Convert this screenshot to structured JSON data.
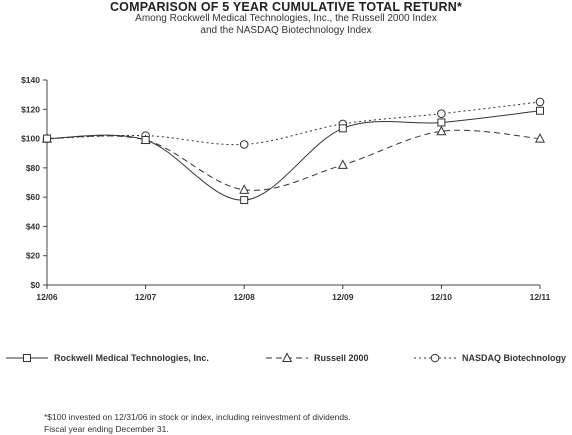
{
  "title": "COMPARISON OF 5 YEAR CUMULATIVE TOTAL RETURN*",
  "subtitle_line1": "Among Rockwell Medical Technologies, Inc., the Russell 2000 Index",
  "subtitle_line2": "and the NASDAQ Biotechnology Index",
  "footnotes": [
    "*$100 invested on 12/31/06 in stock or index, including reinvestment of dividends.",
    "Fiscal year ending December 31."
  ],
  "chart_data": {
    "type": "line",
    "categories": [
      "12/06",
      "12/07",
      "12/08",
      "12/09",
      "12/10",
      "12/11"
    ],
    "y_ticks": [
      "$0",
      "$20",
      "$40",
      "$60",
      "$80",
      "$100",
      "$120",
      "$140"
    ],
    "ylim": [
      0,
      140
    ],
    "y_step": 20,
    "grid": false,
    "legend_position": "bottom",
    "series": [
      {
        "name": "Rockwell Medical Technologies, Inc.",
        "values": [
          100,
          99,
          58,
          107,
          111,
          119
        ],
        "marker": "square",
        "line_style": "solid",
        "color": "#333333"
      },
      {
        "name": "Russell 2000",
        "values": [
          100,
          99,
          65,
          82,
          105,
          100
        ],
        "marker": "triangle",
        "line_style": "dashed",
        "color": "#333333"
      },
      {
        "name": "NASDAQ Biotechnology",
        "values": [
          100,
          102,
          96,
          110,
          117,
          125
        ],
        "marker": "circle",
        "line_style": "dotted",
        "color": "#333333"
      }
    ]
  }
}
